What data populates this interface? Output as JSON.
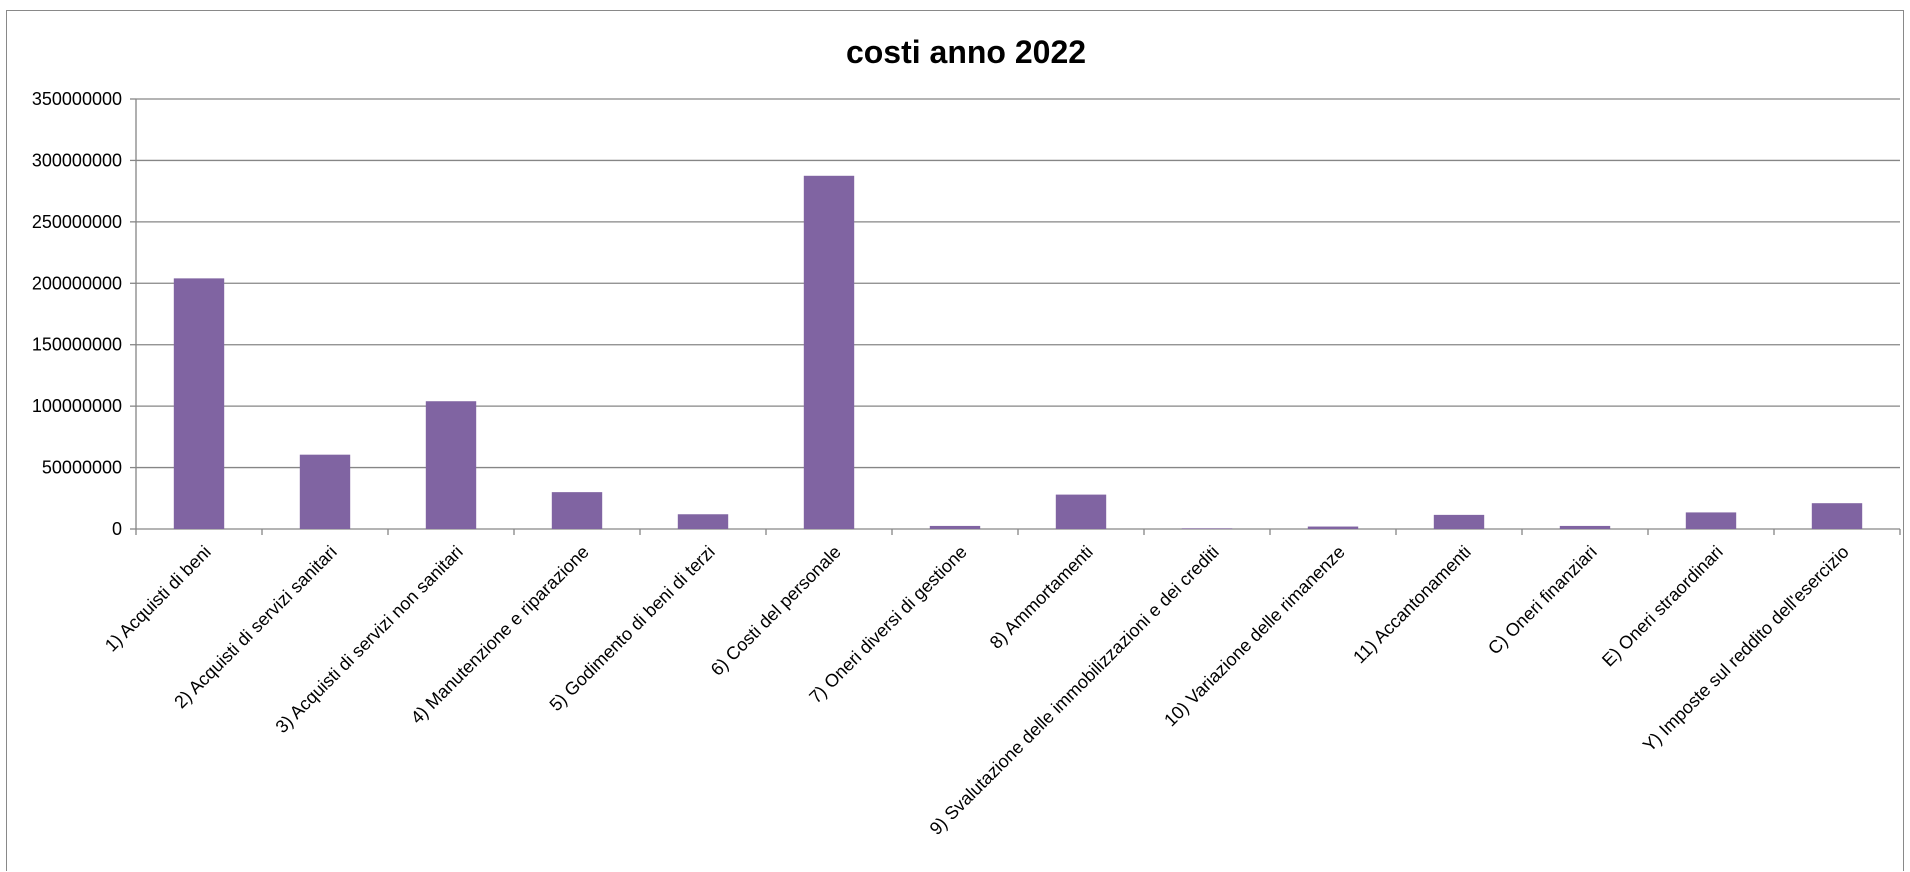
{
  "chart_data": {
    "type": "bar",
    "title": "costi anno 2022",
    "xlabel": "",
    "ylabel": "",
    "ylim": [
      0,
      350000000
    ],
    "yticks": [
      0,
      50000000,
      100000000,
      150000000,
      200000000,
      250000000,
      300000000,
      350000000
    ],
    "ytick_labels": [
      "0",
      "50000000",
      "100000000",
      "150000000",
      "200000000",
      "250000000",
      "300000000",
      "350000000"
    ],
    "grid": true,
    "legend": "none",
    "bar_color": "#8064a2",
    "categories": [
      "1) Acquisti di beni",
      "2) Acquisti di servizi sanitari",
      "3) Acquisti di servizi non sanitari",
      "4) Manutenzione e riparazione",
      "5) Godimento di beni di terzi",
      "6) Costi del personale",
      "7) Oneri diversi di gestione",
      "8) Ammortamenti",
      "9) Svalutazione delle immobilizzazioni e dei crediti",
      "10) Variazione delle rimanenze",
      "11) Accantonamenti",
      "C) Oneri finanziari",
      "E) Oneri straordinari",
      "Y) Imposte sul reddito dell'esercizio"
    ],
    "values": [
      204000000,
      60500000,
      104000000,
      30000000,
      12000000,
      287500000,
      2500000,
      28000000,
      500000,
      2000000,
      11500000,
      2500000,
      13500000,
      21000000
    ]
  }
}
